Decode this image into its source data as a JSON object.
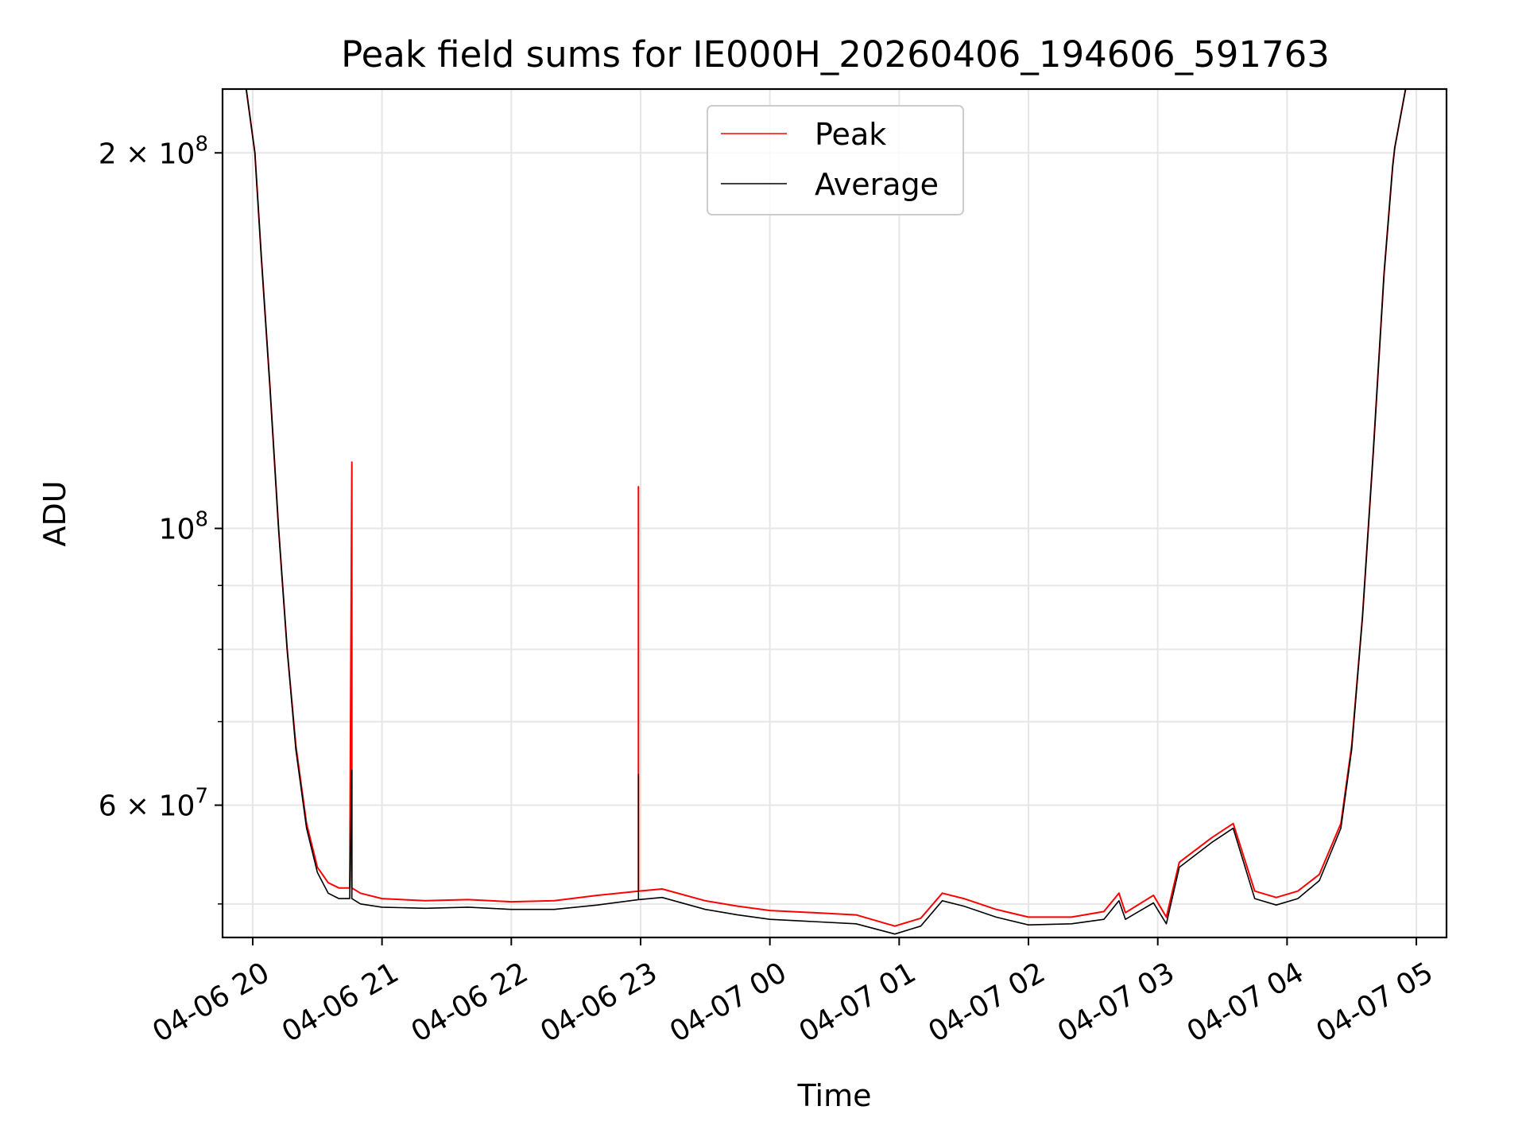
{
  "chart_data": {
    "type": "line",
    "title": "Peak field sums for IE000H_20260406_194606_591763",
    "xlabel": "Time",
    "ylabel": "ADU",
    "yscale": "log",
    "ylim": [
      47000000,
      225000000
    ],
    "xlim": [
      "2026-04-06 19:46",
      "2026-04-07 05:14"
    ],
    "grid": true,
    "legend_position": "top-center",
    "x_ticks": [
      "2026-04-06 20:00",
      "2026-04-06 21:00",
      "2026-04-06 22:00",
      "2026-04-06 23:00",
      "2026-04-07 00:00",
      "2026-04-07 01:00",
      "2026-04-07 02:00",
      "2026-04-07 03:00",
      "2026-04-07 04:00",
      "2026-04-07 05:00"
    ],
    "x_tick_labels": [
      "04-06 20",
      "04-06 21",
      "04-06 22",
      "04-06 23",
      "04-07 00",
      "04-07 01",
      "04-07 02",
      "04-07 03",
      "04-07 04",
      "04-07 05"
    ],
    "y_ticks_major": [
      {
        "value": 60000000,
        "base": "6",
        "exp": "7"
      },
      {
        "value": 100000000,
        "base": "",
        "exp": "8"
      },
      {
        "value": 200000000,
        "base": "2",
        "exp": "8"
      }
    ],
    "series": [
      {
        "name": "Peak",
        "color": "#ff0000",
        "x": [
          "2026-04-06 19:46",
          "2026-04-06 19:57",
          "2026-04-06 20:01",
          "2026-04-06 20:04",
          "2026-04-06 20:08",
          "2026-04-06 20:12",
          "2026-04-06 20:16",
          "2026-04-06 20:20",
          "2026-04-06 20:25",
          "2026-04-06 20:30",
          "2026-04-06 20:35",
          "2026-04-06 20:40",
          "2026-04-06 20:45",
          "2026-04-06 20:46",
          "2026-04-06 20:46",
          "2026-04-06 20:46",
          "2026-04-06 20:50",
          "2026-04-06 21:00",
          "2026-04-06 21:20",
          "2026-04-06 21:40",
          "2026-04-06 22:00",
          "2026-04-06 22:20",
          "2026-04-06 22:40",
          "2026-04-06 22:59",
          "2026-04-06 22:59",
          "2026-04-06 22:59",
          "2026-04-06 23:10",
          "2026-04-06 23:30",
          "2026-04-06 23:45",
          "2026-04-07 00:00",
          "2026-04-07 00:20",
          "2026-04-07 00:40",
          "2026-04-07 00:58",
          "2026-04-07 01:10",
          "2026-04-07 01:20",
          "2026-04-07 01:30",
          "2026-04-07 01:45",
          "2026-04-07 02:00",
          "2026-04-07 02:20",
          "2026-04-07 02:35",
          "2026-04-07 02:42",
          "2026-04-07 02:45",
          "2026-04-07 02:58",
          "2026-04-07 03:04",
          "2026-04-07 03:10",
          "2026-04-07 03:25",
          "2026-04-07 03:35",
          "2026-04-07 03:45",
          "2026-04-07 03:55",
          "2026-04-07 04:05",
          "2026-04-07 04:15",
          "2026-04-07 04:25",
          "2026-04-07 04:30",
          "2026-04-07 04:35",
          "2026-04-07 04:40",
          "2026-04-07 04:45",
          "2026-04-07 04:49",
          "2026-04-07 04:50",
          "2026-04-07 04:55",
          "2026-04-07 05:14"
        ],
        "y": [
          225000000,
          225000000,
          200000000,
          165000000,
          130000000,
          100000000,
          80000000,
          67000000,
          58000000,
          53500000,
          52000000,
          51500000,
          51500000,
          113000000,
          51500000,
          51500000,
          51000000,
          50500000,
          50300000,
          50400000,
          50200000,
          50300000,
          50800000,
          51200000,
          108000000,
          51200000,
          51400000,
          50300000,
          49800000,
          49400000,
          49200000,
          49000000,
          48000000,
          48700000,
          51000000,
          50500000,
          49500000,
          48800000,
          48800000,
          49300000,
          51000000,
          49200000,
          50800000,
          48800000,
          54000000,
          56500000,
          58000000,
          51200000,
          50600000,
          51200000,
          52800000,
          58000000,
          67000000,
          85000000,
          115000000,
          160000000,
          195000000,
          202000000,
          225000000,
          225000000
        ]
      },
      {
        "name": "Average",
        "color": "#000000",
        "x": [
          "2026-04-06 19:46",
          "2026-04-06 19:57",
          "2026-04-06 20:01",
          "2026-04-06 20:04",
          "2026-04-06 20:08",
          "2026-04-06 20:12",
          "2026-04-06 20:16",
          "2026-04-06 20:20",
          "2026-04-06 20:25",
          "2026-04-06 20:30",
          "2026-04-06 20:35",
          "2026-04-06 20:40",
          "2026-04-06 20:45",
          "2026-04-06 20:46",
          "2026-04-06 20:46",
          "2026-04-06 20:46",
          "2026-04-06 20:50",
          "2026-04-06 21:00",
          "2026-04-06 21:20",
          "2026-04-06 21:40",
          "2026-04-06 22:00",
          "2026-04-06 22:20",
          "2026-04-06 22:40",
          "2026-04-06 22:59",
          "2026-04-06 22:59",
          "2026-04-06 22:59",
          "2026-04-06 23:10",
          "2026-04-06 23:30",
          "2026-04-06 23:45",
          "2026-04-07 00:00",
          "2026-04-07 00:20",
          "2026-04-07 00:40",
          "2026-04-07 00:58",
          "2026-04-07 01:10",
          "2026-04-07 01:20",
          "2026-04-07 01:30",
          "2026-04-07 01:45",
          "2026-04-07 02:00",
          "2026-04-07 02:20",
          "2026-04-07 02:35",
          "2026-04-07 02:42",
          "2026-04-07 02:45",
          "2026-04-07 02:58",
          "2026-04-07 03:04",
          "2026-04-07 03:10",
          "2026-04-07 03:25",
          "2026-04-07 03:35",
          "2026-04-07 03:45",
          "2026-04-07 03:55",
          "2026-04-07 04:05",
          "2026-04-07 04:15",
          "2026-04-07 04:25",
          "2026-04-07 04:30",
          "2026-04-07 04:35",
          "2026-04-07 04:40",
          "2026-04-07 04:45",
          "2026-04-07 04:49",
          "2026-04-07 04:50",
          "2026-04-07 04:55",
          "2026-04-07 05:14"
        ],
        "y": [
          225000000,
          225000000,
          200000000,
          165000000,
          130000000,
          100000000,
          80000000,
          66500000,
          57500000,
          53000000,
          51000000,
          50500000,
          50500000,
          64000000,
          50500000,
          50500000,
          50000000,
          49700000,
          49600000,
          49700000,
          49500000,
          49500000,
          49900000,
          50400000,
          63500000,
          50400000,
          50600000,
          49500000,
          49000000,
          48600000,
          48400000,
          48200000,
          47300000,
          48000000,
          50300000,
          49800000,
          48800000,
          48100000,
          48200000,
          48600000,
          50300000,
          48600000,
          50100000,
          48200000,
          53500000,
          56000000,
          57500000,
          50500000,
          49900000,
          50500000,
          52200000,
          57500000,
          66500000,
          85000000,
          115000000,
          160000000,
          195000000,
          202000000,
          225000000,
          225000000
        ]
      }
    ]
  }
}
